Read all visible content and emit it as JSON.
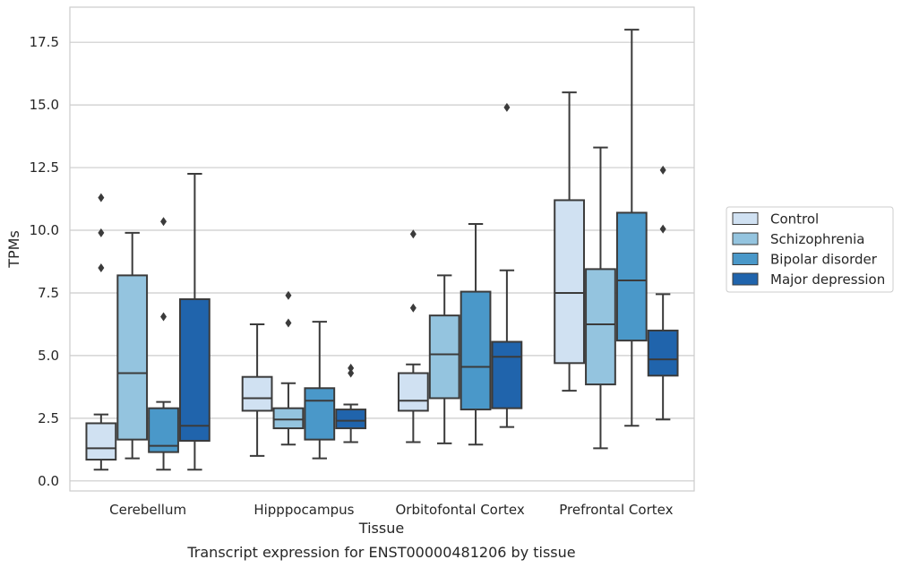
{
  "caption": "Transcript expression for ENST00000481206 by tissue",
  "chart_data": {
    "type": "box",
    "xlabel": "Tissue",
    "ylabel": "TPMs",
    "ylim": [
      -0.4,
      18.9
    ],
    "yticks": [
      0.0,
      2.5,
      5.0,
      7.5,
      10.0,
      12.5,
      15.0,
      17.5
    ],
    "ytick_labels": [
      "0.0",
      "2.5",
      "5.0",
      "7.5",
      "10.0",
      "12.5",
      "15.0",
      "17.5"
    ],
    "grid": "horizontal",
    "legend_position": "right",
    "categories": [
      "Cerebellum",
      "Hipppocampus",
      "Orbitofontal Cortex",
      "Prefrontal Cortex"
    ],
    "series": [
      {
        "name": "Control",
        "color": "#d0e1f2",
        "boxes": [
          {
            "whislo": 0.45,
            "q1": 0.85,
            "med": 1.3,
            "q3": 2.3,
            "whishi": 2.65,
            "fliers": [
              8.5,
              9.9,
              11.3
            ]
          },
          {
            "whislo": 1.0,
            "q1": 2.8,
            "med": 3.3,
            "q3": 4.15,
            "whishi": 6.25,
            "fliers": []
          },
          {
            "whislo": 1.55,
            "q1": 2.8,
            "med": 3.2,
            "q3": 4.3,
            "whishi": 4.65,
            "fliers": [
              6.9,
              9.85
            ]
          },
          {
            "whislo": 3.6,
            "q1": 4.7,
            "med": 7.5,
            "q3": 11.2,
            "whishi": 15.5,
            "fliers": []
          }
        ]
      },
      {
        "name": "Schizophrenia",
        "color": "#94c4df",
        "boxes": [
          {
            "whislo": 0.9,
            "q1": 1.65,
            "med": 4.3,
            "q3": 8.2,
            "whishi": 9.9,
            "fliers": []
          },
          {
            "whislo": 1.45,
            "q1": 2.1,
            "med": 2.45,
            "q3": 2.9,
            "whishi": 3.9,
            "fliers": [
              6.3,
              7.4
            ]
          },
          {
            "whislo": 1.5,
            "q1": 3.3,
            "med": 5.05,
            "q3": 6.6,
            "whishi": 8.2,
            "fliers": []
          },
          {
            "whislo": 1.3,
            "q1": 3.85,
            "med": 6.25,
            "q3": 8.45,
            "whishi": 13.3,
            "fliers": []
          }
        ]
      },
      {
        "name": "Bipolar disorder",
        "color": "#4a98c9",
        "boxes": [
          {
            "whislo": 0.45,
            "q1": 1.15,
            "med": 1.4,
            "q3": 2.9,
            "whishi": 3.15,
            "fliers": [
              6.55,
              10.35
            ]
          },
          {
            "whislo": 0.9,
            "q1": 1.65,
            "med": 3.2,
            "q3": 3.7,
            "whishi": 6.35,
            "fliers": []
          },
          {
            "whislo": 1.45,
            "q1": 2.85,
            "med": 4.55,
            "q3": 7.55,
            "whishi": 10.25,
            "fliers": []
          },
          {
            "whislo": 2.2,
            "q1": 5.6,
            "med": 8.0,
            "q3": 10.7,
            "whishi": 18.0,
            "fliers": []
          }
        ]
      },
      {
        "name": "Major depression",
        "color": "#2064ac",
        "boxes": [
          {
            "whislo": 0.45,
            "q1": 1.6,
            "med": 2.2,
            "q3": 7.25,
            "whishi": 12.25,
            "fliers": []
          },
          {
            "whislo": 1.55,
            "q1": 2.1,
            "med": 2.4,
            "q3": 2.85,
            "whishi": 3.05,
            "fliers": [
              4.3,
              4.5
            ]
          },
          {
            "whislo": 2.15,
            "q1": 2.9,
            "med": 4.95,
            "q3": 5.55,
            "whishi": 8.4,
            "fliers": [
              14.9
            ]
          },
          {
            "whislo": 2.45,
            "q1": 4.2,
            "med": 4.85,
            "q3": 6.0,
            "whishi": 7.45,
            "fliers": [
              10.05,
              12.4
            ]
          }
        ]
      }
    ]
  }
}
